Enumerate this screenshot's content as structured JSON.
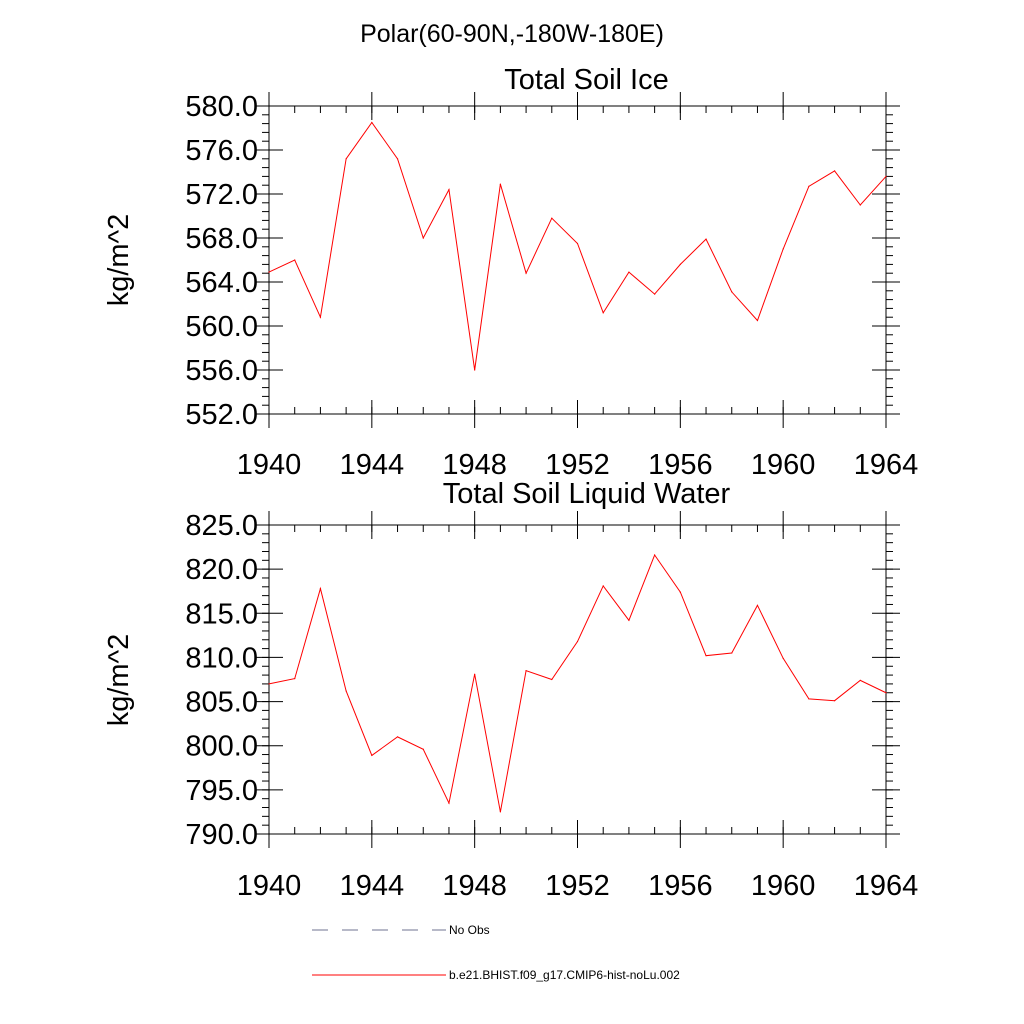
{
  "figure": {
    "supertitle": "Polar(60-90N,-180W-180E)"
  },
  "chart_data": [
    {
      "type": "line",
      "title": "Total Soil Ice",
      "xlabel": "",
      "ylabel": "kg/m^2",
      "xlim": [
        1940,
        1964
      ],
      "ylim": [
        552.0,
        580.0
      ],
      "xticks": [
        1940,
        1944,
        1948,
        1952,
        1956,
        1960,
        1964
      ],
      "xtick_labels": [
        "1940",
        "1944",
        "1948",
        "1952",
        "1956",
        "1960",
        "1964"
      ],
      "yticks": [
        552.0,
        556.0,
        560.0,
        564.0,
        568.0,
        572.0,
        576.0,
        580.0
      ],
      "ytick_labels": [
        "552.0",
        "556.0",
        "560.0",
        "564.0",
        "568.0",
        "572.0",
        "576.0",
        "580.0"
      ],
      "grid": false,
      "x": [
        1940,
        1941,
        1942,
        1943,
        1944,
        1945,
        1946,
        1947,
        1948,
        1949,
        1950,
        1951,
        1952,
        1953,
        1954,
        1955,
        1956,
        1957,
        1958,
        1959,
        1960,
        1961,
        1962,
        1963,
        1964
      ],
      "series": [
        {
          "name": "b.e21.BHIST.f09_g17.CMIP6-hist-noLu.002",
          "color": "#ff0000",
          "values": [
            564.9,
            566.0,
            560.8,
            575.2,
            578.5,
            575.2,
            568.0,
            572.4,
            556.0,
            572.9,
            564.8,
            569.8,
            567.5,
            561.2,
            564.9,
            562.9,
            565.6,
            567.9,
            563.1,
            560.5,
            567.0,
            572.7,
            574.1,
            571.0,
            573.6
          ]
        }
      ]
    },
    {
      "type": "line",
      "title": "Total Soil Liquid Water",
      "xlabel": "",
      "ylabel": "kg/m^2",
      "xlim": [
        1940,
        1964
      ],
      "ylim": [
        790.0,
        825.0
      ],
      "xticks": [
        1940,
        1944,
        1948,
        1952,
        1956,
        1960,
        1964
      ],
      "xtick_labels": [
        "1940",
        "1944",
        "1948",
        "1952",
        "1956",
        "1960",
        "1964"
      ],
      "yticks": [
        790.0,
        795.0,
        800.0,
        805.0,
        810.0,
        815.0,
        820.0,
        825.0
      ],
      "ytick_labels": [
        "790.0",
        "795.0",
        "800.0",
        "805.0",
        "810.0",
        "815.0",
        "820.0",
        "825.0"
      ],
      "grid": false,
      "x": [
        1940,
        1941,
        1942,
        1943,
        1944,
        1945,
        1946,
        1947,
        1948,
        1949,
        1950,
        1951,
        1952,
        1953,
        1954,
        1955,
        1956,
        1957,
        1958,
        1959,
        1960,
        1961,
        1962,
        1963,
        1964
      ],
      "series": [
        {
          "name": "b.e21.BHIST.f09_g17.CMIP6-hist-noLu.002",
          "color": "#ff0000",
          "values": [
            807.0,
            807.6,
            817.8,
            806.2,
            798.9,
            801.0,
            799.6,
            793.5,
            808.1,
            792.5,
            808.5,
            807.5,
            811.8,
            818.1,
            814.2,
            821.6,
            817.4,
            810.2,
            810.5,
            815.9,
            809.9,
            805.3,
            805.1,
            807.4,
            806.0
          ]
        }
      ]
    }
  ],
  "legend": {
    "placement": "bottom",
    "items": [
      {
        "label": "No Obs",
        "color": "#6f7391",
        "style": "dashed"
      },
      {
        "label": "b.e21.BHIST.f09_g17.CMIP6-hist-noLu.002",
        "color": "#ff0000",
        "style": "solid"
      }
    ]
  }
}
